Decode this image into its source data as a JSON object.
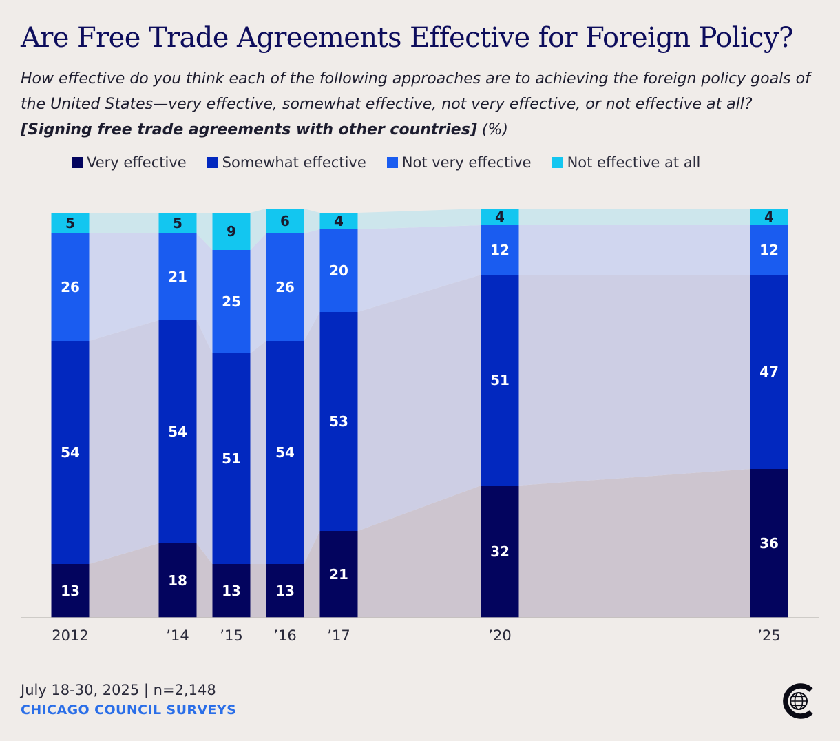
{
  "header": {
    "title": "Are Free Trade Agreements Effective for Foreign Policy?",
    "subtitle_pre": "How effective do you think each of the following approaches are to achieving the foreign policy goals of the United States—very effective, somewhat effective, not very effective, or not effective at all?",
    "subtitle_bold": "[Signing free trade agreements with other countries]",
    "subtitle_post": "(%)"
  },
  "footer": {
    "date_n": "July 18-30, 2025 | n=2,148",
    "source": "CHICAGO COUNCIL SURVEYS"
  },
  "colors": {
    "very": "#03045e",
    "somewhat": "#0228bf",
    "not_very": "#1a5cf0",
    "not_at_all": "#13c6f0"
  },
  "chart_data": {
    "type": "bar",
    "stacked": true,
    "title": "Are Free Trade Agreements Effective for Foreign Policy?",
    "categories": [
      "2012",
      "’14",
      "’15",
      "’16",
      "’17",
      "’20",
      "’25"
    ],
    "years": [
      2012,
      2014,
      2015,
      2016,
      2017,
      2020,
      2025
    ],
    "series": [
      {
        "key": "very",
        "name": "Very effective",
        "values": [
          13,
          18,
          13,
          13,
          21,
          32,
          36
        ]
      },
      {
        "key": "somewhat",
        "name": "Somewhat effective",
        "values": [
          54,
          54,
          51,
          54,
          53,
          51,
          47
        ]
      },
      {
        "key": "not_very",
        "name": "Not very effective",
        "values": [
          26,
          21,
          25,
          26,
          20,
          12,
          12
        ]
      },
      {
        "key": "not_at_all",
        "name": "Not effective at all",
        "values": [
          5,
          5,
          9,
          6,
          4,
          4,
          4
        ]
      }
    ],
    "ylim": [
      0,
      100
    ],
    "xlabel": "",
    "ylabel": "",
    "legend_position": "top"
  }
}
